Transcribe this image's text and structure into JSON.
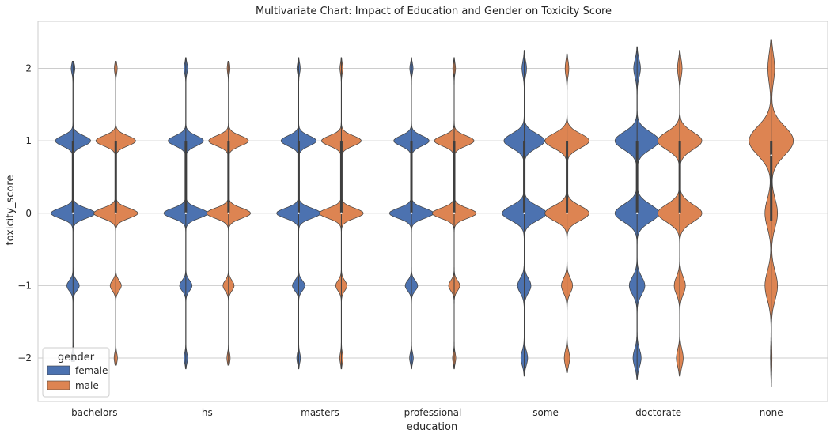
{
  "chart_data": {
    "type": "violin",
    "title": "Multivariate Chart: Impact of Education and Gender on Toxicity Score",
    "xlabel": "education",
    "ylabel": "toxicity_score",
    "categories": [
      "bachelors",
      "hs",
      "masters",
      "professional",
      "some",
      "doctorate",
      "none"
    ],
    "y_ticks": [
      2,
      1,
      0,
      -1,
      -2
    ],
    "y_tick_labels": [
      "2",
      "1",
      "0",
      "−1",
      "−2"
    ],
    "ylim": [
      -2.6,
      2.65
    ],
    "grid": "horizontal",
    "legend": {
      "title": "gender",
      "placement": "lower-left",
      "entries": [
        {
          "name": "female",
          "color": "#4c72b0"
        },
        {
          "name": "male",
          "color": "#dd8452"
        }
      ]
    },
    "series": [
      {
        "name": "female",
        "color": "#4c72b0",
        "violins": [
          {
            "category": "bachelors",
            "min": -2.05,
            "max": 2.1,
            "q1": 0,
            "median": 0,
            "q3": 1,
            "weights": {
              "2": 0.08,
              "1": 0.8,
              "0": 1.0,
              "-1": 0.28,
              "-2": 0.08
            },
            "spread": 0.07
          },
          {
            "category": "hs",
            "min": -2.15,
            "max": 2.15,
            "q1": 0,
            "median": 0,
            "q3": 1,
            "weights": {
              "2": 0.08,
              "1": 0.8,
              "0": 1.0,
              "-1": 0.28,
              "-2": 0.08
            },
            "spread": 0.07
          },
          {
            "category": "masters",
            "min": -2.15,
            "max": 2.15,
            "q1": 0,
            "median": 0,
            "q3": 1,
            "weights": {
              "2": 0.07,
              "1": 0.8,
              "0": 1.0,
              "-1": 0.28,
              "-2": 0.08
            },
            "spread": 0.07
          },
          {
            "category": "professional",
            "min": -2.15,
            "max": 2.15,
            "q1": 0,
            "median": 0,
            "q3": 1,
            "weights": {
              "2": 0.07,
              "1": 0.8,
              "0": 1.0,
              "-1": 0.28,
              "-2": 0.08
            },
            "spread": 0.07
          },
          {
            "category": "some",
            "min": -2.25,
            "max": 2.25,
            "q1": 0,
            "median": 0,
            "q3": 1,
            "weights": {
              "2": 0.1,
              "1": 0.92,
              "0": 1.0,
              "-1": 0.3,
              "-2": 0.15
            },
            "spread": 0.1
          },
          {
            "category": "doctorate",
            "min": -2.3,
            "max": 2.3,
            "q1": 0,
            "median": 0,
            "q3": 1,
            "weights": {
              "2": 0.15,
              "1": 1.0,
              "0": 1.0,
              "-1": 0.35,
              "-2": 0.18
            },
            "spread": 0.12
          }
        ]
      },
      {
        "name": "male",
        "color": "#dd8452",
        "violins": [
          {
            "category": "bachelors",
            "min": -2.1,
            "max": 2.1,
            "q1": 0,
            "median": 0,
            "q3": 1,
            "weights": {
              "2": 0.06,
              "1": 0.9,
              "0": 1.0,
              "-1": 0.25,
              "-2": 0.07
            },
            "spread": 0.07
          },
          {
            "category": "hs",
            "min": -2.1,
            "max": 2.1,
            "q1": 0,
            "median": 0,
            "q3": 1,
            "weights": {
              "2": 0.06,
              "1": 0.9,
              "0": 1.0,
              "-1": 0.25,
              "-2": 0.07
            },
            "spread": 0.07
          },
          {
            "category": "masters",
            "min": -2.15,
            "max": 2.15,
            "q1": 0,
            "median": 0,
            "q3": 1,
            "weights": {
              "2": 0.06,
              "1": 0.9,
              "0": 1.0,
              "-1": 0.25,
              "-2": 0.07
            },
            "spread": 0.07
          },
          {
            "category": "professional",
            "min": -2.15,
            "max": 2.15,
            "q1": 0,
            "median": 0,
            "q3": 1,
            "weights": {
              "2": 0.06,
              "1": 0.9,
              "0": 1.0,
              "-1": 0.25,
              "-2": 0.07
            },
            "spread": 0.07
          },
          {
            "category": "some",
            "min": -2.2,
            "max": 2.2,
            "q1": 0,
            "median": 0,
            "q3": 1,
            "weights": {
              "2": 0.08,
              "1": 1.0,
              "0": 1.0,
              "-1": 0.25,
              "-2": 0.12
            },
            "spread": 0.1
          },
          {
            "category": "doctorate",
            "min": -2.25,
            "max": 2.25,
            "q1": 0,
            "median": 0,
            "q3": 1,
            "weights": {
              "2": 0.1,
              "1": 1.0,
              "0": 1.0,
              "-1": 0.25,
              "-2": 0.15
            },
            "spread": 0.12
          },
          {
            "category": "none",
            "min": -2.4,
            "max": 2.4,
            "q1": -0.1,
            "median": 0.8,
            "q3": 1,
            "weights": {
              "2": 0.15,
              "1": 1.0,
              "0": 0.28,
              "-1": 0.28,
              "-2": 0.03
            },
            "spread": 0.2
          }
        ]
      }
    ]
  }
}
